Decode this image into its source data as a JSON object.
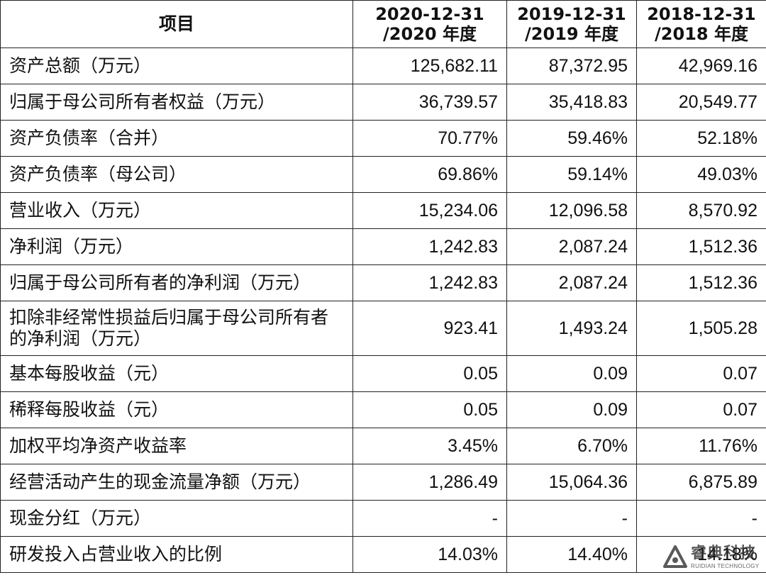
{
  "table": {
    "headers": [
      {
        "line1": "项目",
        "line2": ""
      },
      {
        "line1": "2020-12-31",
        "line2": "/2020 年度"
      },
      {
        "line1": "2019-12-31",
        "line2": "/2019 年度"
      },
      {
        "line1": "2018-12-31",
        "line2": "/2018 年度"
      }
    ],
    "rows": [
      {
        "label": "资产总额（万元）",
        "v2020": "125,682.11",
        "v2019": "87,372.95",
        "v2018": "42,969.16"
      },
      {
        "label": "归属于母公司所有者权益（万元）",
        "v2020": "36,739.57",
        "v2019": "35,418.83",
        "v2018": "20,549.77"
      },
      {
        "label": "资产负债率（合并）",
        "v2020": "70.77%",
        "v2019": "59.46%",
        "v2018": "52.18%"
      },
      {
        "label": "资产负债率（母公司）",
        "v2020": "69.86%",
        "v2019": "59.14%",
        "v2018": "49.03%"
      },
      {
        "label": "营业收入（万元）",
        "v2020": "15,234.06",
        "v2019": "12,096.58",
        "v2018": "8,570.92"
      },
      {
        "label": "净利润（万元）",
        "v2020": "1,242.83",
        "v2019": "2,087.24",
        "v2018": "1,512.36"
      },
      {
        "label": "归属于母公司所有者的净利润（万元）",
        "v2020": "1,242.83",
        "v2019": "2,087.24",
        "v2018": "1,512.36"
      },
      {
        "label": "扣除非经常性损益后归属于母公司所有者的净利润（万元）",
        "v2020": "923.41",
        "v2019": "1,493.24",
        "v2018": "1,505.28"
      },
      {
        "label": "基本每股收益（元）",
        "v2020": "0.05",
        "v2019": "0.09",
        "v2018": "0.07"
      },
      {
        "label": "稀释每股收益（元）",
        "v2020": "0.05",
        "v2019": "0.09",
        "v2018": "0.07"
      },
      {
        "label": "加权平均净资产收益率",
        "v2020": "3.45%",
        "v2019": "6.70%",
        "v2018": "11.76%"
      },
      {
        "label": "经营活动产生的现金流量净额（万元）",
        "v2020": "1,286.49",
        "v2019": "15,064.36",
        "v2018": "6,875.89"
      },
      {
        "label": "现金分红（万元）",
        "v2020": "-",
        "v2019": "-",
        "v2018": "-"
      },
      {
        "label": "研发投入占营业收入的比例",
        "v2020": "14.03%",
        "v2019": "14.40%",
        "v2018": "14.18%"
      }
    ]
  },
  "watermark": {
    "brand_cn": "睿典科技",
    "brand_en": "RUIDIAN TECHNOLOGY",
    "icon": "ruidian-logo-icon"
  },
  "colors": {
    "border": "#222222",
    "text": "#111111",
    "background": "#ffffff"
  }
}
